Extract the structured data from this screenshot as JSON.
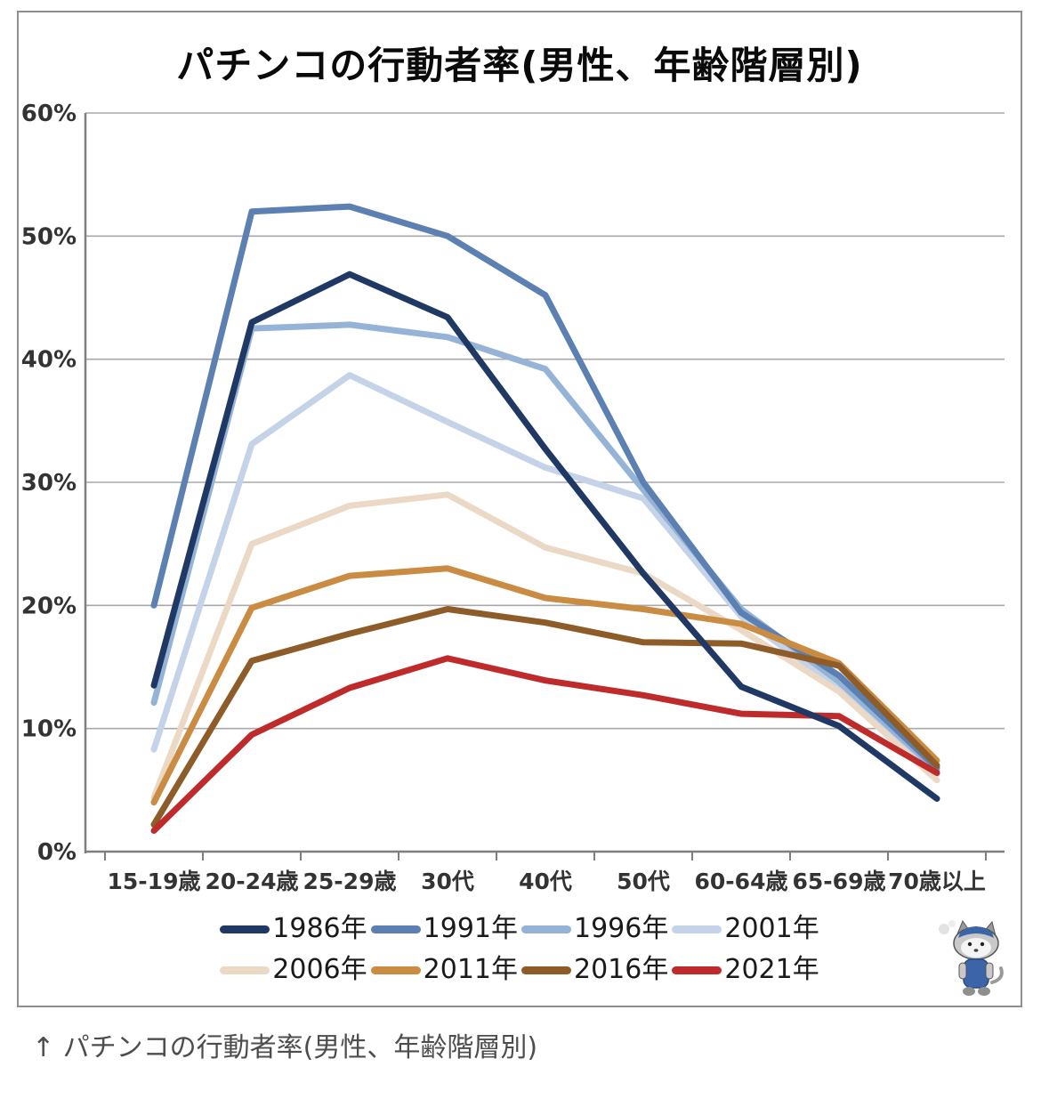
{
  "title": "パチンコの行動者率(男性、年齢階層別)",
  "caption": "↑ パチンコの行動者率(男性、年齢階層別)",
  "colors": {
    "grid": "#a8a8a8",
    "axis": "#7f7f7f",
    "title_text": "#0a0a0a",
    "axis_label_text": "#333333",
    "caption_text": "#4d4d4d"
  },
  "chart_data": {
    "type": "line",
    "title": "パチンコの行動者率(男性、年齢階層別)",
    "categories": [
      "15-19歳",
      "20-24歳",
      "25-29歳",
      "30代",
      "40代",
      "50代",
      "60-64歳",
      "65-69歳",
      "70歳以上"
    ],
    "xlabel": "",
    "ylabel": "",
    "ylim": [
      0,
      60
    ],
    "y_ticks": [
      {
        "label": "60%",
        "value": 60
      },
      {
        "label": "50%",
        "value": 50
      },
      {
        "label": "40%",
        "value": 40
      },
      {
        "label": "30%",
        "value": 30
      },
      {
        "label": "20%",
        "value": 20
      },
      {
        "label": "10%",
        "value": 10
      },
      {
        "label": "0%",
        "value": 0
      }
    ],
    "grid": true,
    "legend_position": "bottom",
    "series": [
      {
        "name": "1986年",
        "color": "#1F3864",
        "values": [
          13.5,
          43.0,
          46.9,
          43.4,
          32.7,
          22.6,
          13.4,
          10.2,
          4.3
        ]
      },
      {
        "name": "1991年",
        "color": "#5B80B1",
        "values": [
          20.0,
          52.0,
          52.4,
          50.0,
          45.2,
          30.0,
          19.4,
          14.3,
          6.8
        ]
      },
      {
        "name": "1996年",
        "color": "#95B3D7",
        "values": [
          12.1,
          42.5,
          42.8,
          41.8,
          39.2,
          29.4,
          19.7,
          13.8,
          6.6
        ]
      },
      {
        "name": "2001年",
        "color": "#C5D3E8",
        "values": [
          8.3,
          33.1,
          38.7,
          34.9,
          31.2,
          28.7,
          19.1,
          13.3,
          6.3
        ]
      },
      {
        "name": "2006年",
        "color": "#EBD9C6",
        "values": [
          4.4,
          25.0,
          28.1,
          29.0,
          24.7,
          22.6,
          18.0,
          13.0,
          5.8
        ]
      },
      {
        "name": "2011年",
        "color": "#CA8B42",
        "values": [
          4.0,
          19.8,
          22.4,
          23.0,
          20.6,
          19.7,
          18.5,
          15.3,
          7.4
        ]
      },
      {
        "name": "2016年",
        "color": "#8E5C28",
        "values": [
          2.2,
          15.5,
          17.7,
          19.7,
          18.6,
          17.0,
          16.9,
          15.1,
          7.0
        ]
      },
      {
        "name": "2021年",
        "color": "#BF2B2B",
        "values": [
          1.7,
          9.5,
          13.3,
          15.7,
          13.9,
          12.7,
          11.2,
          11.0,
          6.4
        ]
      }
    ]
  }
}
